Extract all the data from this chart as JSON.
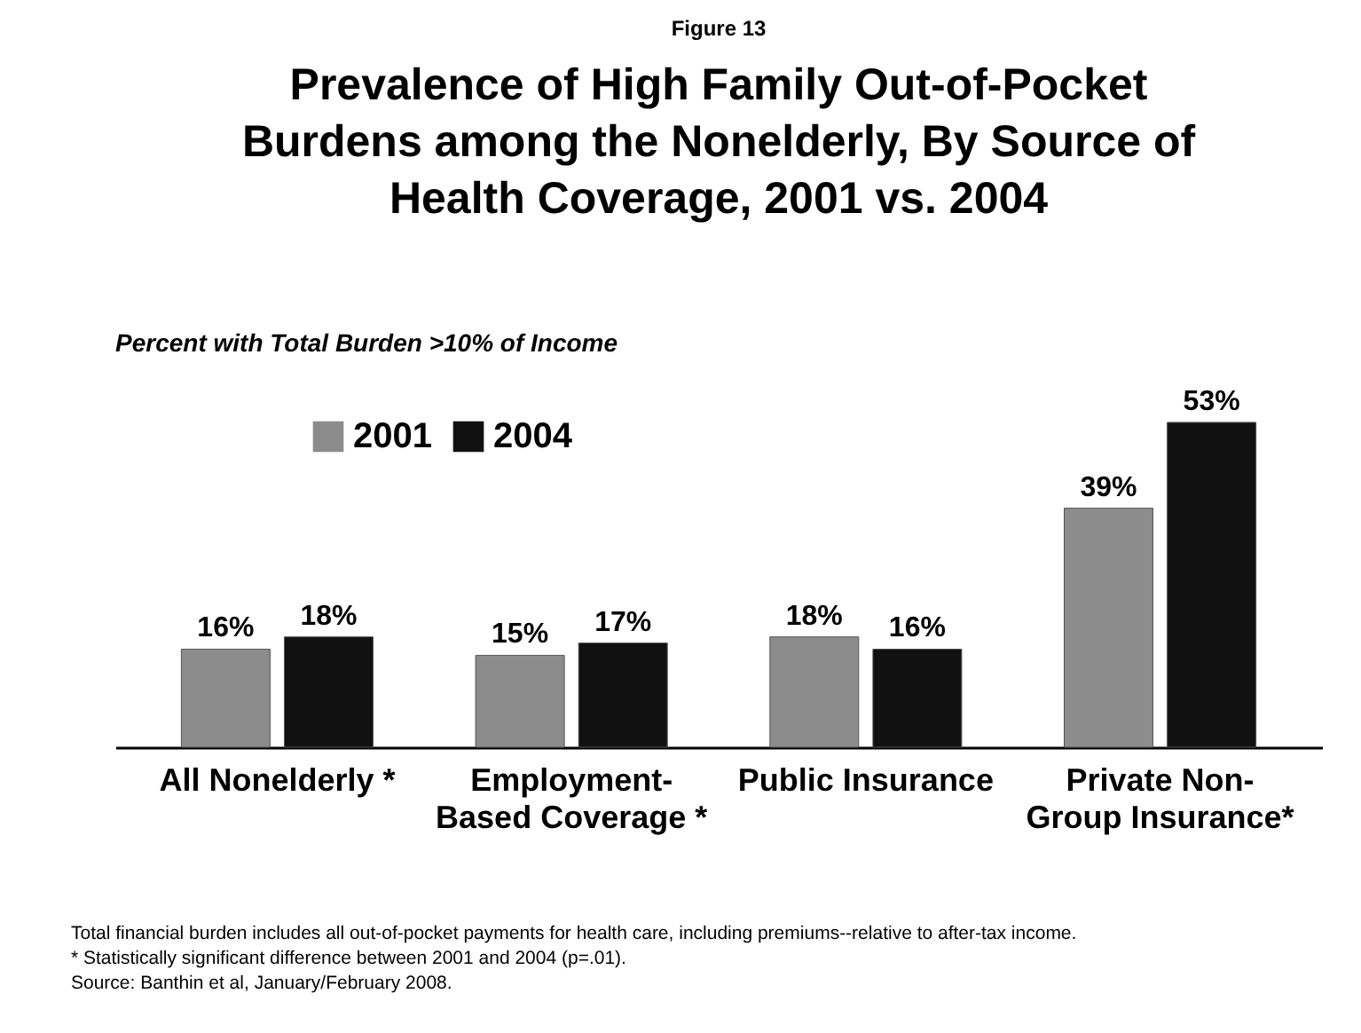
{
  "chart_data": {
    "type": "bar",
    "title": "Prevalence of High Family Out-of-Pocket Burdens among the Nonelderly, By Source of Health Coverage, 2001 vs. 2004",
    "ylabel": "Percent with Total Burden >10% of Income",
    "categories": [
      "All Nonelderly *",
      "Employment-Based Coverage *",
      "Public Insurance",
      "Private Non-Group Insurance*"
    ],
    "series": [
      {
        "name": "2001",
        "color": "#8c8c8c",
        "values": [
          16,
          15,
          18,
          39
        ],
        "value_labels": [
          "16%",
          "15%",
          "18%",
          "39%"
        ]
      },
      {
        "name": "2004",
        "color": "#111111",
        "values": [
          18,
          17,
          16,
          53
        ],
        "value_labels": [
          "18%",
          "17%",
          "16%",
          "53%"
        ]
      }
    ],
    "legend": "top left",
    "grid": false,
    "annotations": [
      "Figure 13",
      "Total financial burden includes all out-of-pocket payments for health care, including premiums--relative to after-tax income.",
      "* Statistically significant difference between 2001 and 2004 (p=.01).",
      "Source: Banthin et al, January/February 2008."
    ]
  }
}
